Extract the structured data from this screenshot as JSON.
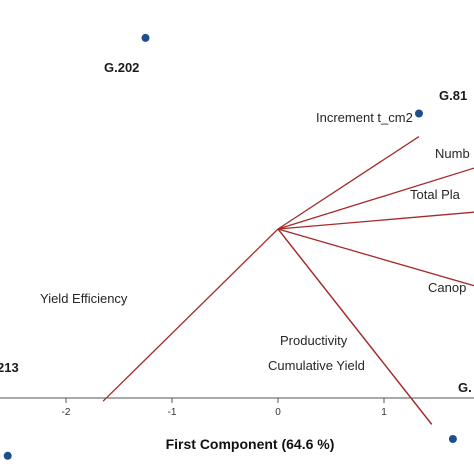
{
  "chart_data": {
    "type": "scatter",
    "subtype": "biplot",
    "xlabel": "First Component (64.6 %)",
    "ylabel": "",
    "xlim": [
      -2.6,
      1.8
    ],
    "ylim": [
      -1.45,
      1.0
    ],
    "x_ticks": [
      -2,
      -1,
      0,
      1
    ],
    "x_tick_labels": [
      "-2",
      "-1",
      "0",
      "1"
    ],
    "grid": false,
    "colors": {
      "points": "#1f4e8c",
      "vectors": "#a52a2a",
      "axis": "#555555"
    },
    "points": [
      {
        "label": "G.202",
        "x": -1.25,
        "y": 0.91
      },
      {
        "label": "G.81",
        "x": 1.33,
        "y": 0.55
      },
      {
        "label": "213",
        "x": -2.55,
        "y": -1.08
      },
      {
        "label": "G.",
        "x": 1.65,
        "y": -1.0
      }
    ],
    "vectors": [
      {
        "label": "Increment t_cm2",
        "x": 1.33,
        "y": 0.44
      },
      {
        "label": "Numb",
        "x": 1.85,
        "y": 0.29
      },
      {
        "label": "Total Pla",
        "x": 1.85,
        "y": 0.08
      },
      {
        "label": "Canop",
        "x": 1.85,
        "y": -0.27
      },
      {
        "label": "Productivity",
        "x": 1.45,
        "y": -0.93
      },
      {
        "label": "Cumulative Yield",
        "x": 1.45,
        "y": -0.93
      },
      {
        "label": "Yield Efficiency",
        "x": -1.65,
        "y": -0.82
      }
    ]
  }
}
